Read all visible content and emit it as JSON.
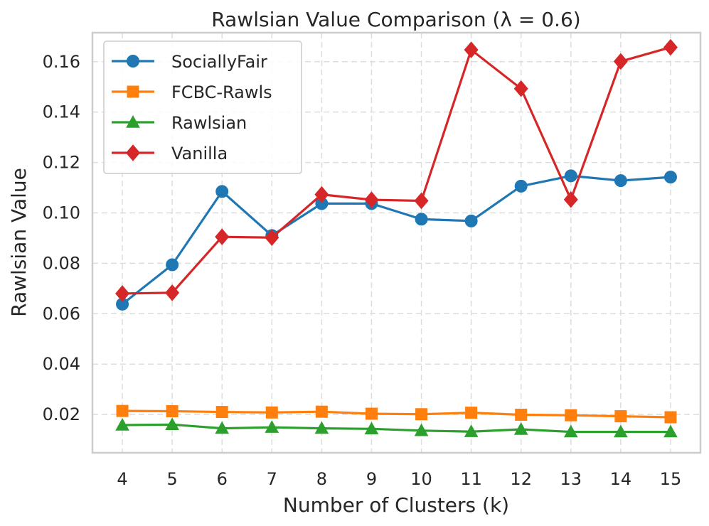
{
  "chart_data": {
    "type": "line",
    "title": "Rawlsian Value Comparison (λ = 0.6)",
    "xlabel": "Number of Clusters (k)",
    "ylabel": "Rawlsian Value",
    "x": [
      4,
      5,
      6,
      7,
      8,
      9,
      10,
      11,
      12,
      13,
      14,
      15
    ],
    "xlim": [
      3.4,
      15.6
    ],
    "ylim": [
      0.0048,
      0.1715
    ],
    "yticks": [
      0.02,
      0.04,
      0.06,
      0.08,
      0.1,
      0.12,
      0.14,
      0.16
    ],
    "ytick_labels": [
      "0.02",
      "0.04",
      "0.06",
      "0.08",
      "0.10",
      "0.12",
      "0.14",
      "0.16"
    ],
    "grid": true,
    "legend_position": "top-left",
    "series": [
      {
        "name": "SociallyFair",
        "color": "#1f77b4",
        "marker": "circle",
        "values": [
          0.0638,
          0.0794,
          0.1085,
          0.091,
          0.1037,
          0.1037,
          0.0975,
          0.0968,
          0.1106,
          0.1147,
          0.1128,
          0.1142
        ]
      },
      {
        "name": "FCBC-Rawls",
        "color": "#ff7f0e",
        "marker": "square",
        "values": [
          0.0214,
          0.0213,
          0.021,
          0.0208,
          0.0211,
          0.0203,
          0.0201,
          0.0207,
          0.0199,
          0.0197,
          0.0193,
          0.0189
        ]
      },
      {
        "name": "Rawlsian",
        "color": "#2ca02c",
        "marker": "triangle",
        "values": [
          0.0158,
          0.016,
          0.0145,
          0.0149,
          0.0145,
          0.0143,
          0.0136,
          0.0132,
          0.0141,
          0.0131,
          0.0131,
          0.0131
        ]
      },
      {
        "name": "Vanilla",
        "color": "#d62728",
        "marker": "diamond",
        "values": [
          0.068,
          0.0683,
          0.0905,
          0.0902,
          0.1073,
          0.1052,
          0.1048,
          0.1647,
          0.1493,
          0.1053,
          0.1601,
          0.1657
        ]
      }
    ]
  }
}
